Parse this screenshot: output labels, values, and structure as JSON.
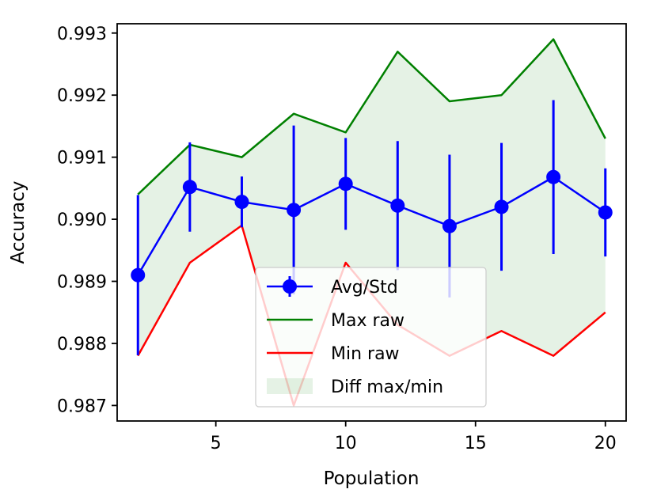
{
  "chart_data": {
    "type": "line",
    "title": "",
    "xlabel": "Population",
    "ylabel": "Accuracy",
    "xlim": [
      1.2,
      20.8
    ],
    "ylim": [
      0.98675,
      0.99315
    ],
    "xticks": [
      5,
      10,
      15,
      20
    ],
    "xtick_labels": [
      "5",
      "10",
      "15",
      "20"
    ],
    "yticks": [
      0.987,
      0.988,
      0.989,
      0.99,
      0.991,
      0.992,
      0.993
    ],
    "ytick_labels": [
      "0.987",
      "0.988",
      "0.989",
      "0.990",
      "0.991",
      "0.992",
      "0.993"
    ],
    "grid": false,
    "legend_position": "lower center",
    "x": [
      2,
      4,
      6,
      8,
      10,
      12,
      14,
      16,
      18,
      20
    ],
    "series": [
      {
        "name": "Avg/Std",
        "kind": "errorbar",
        "color": "#0000ff",
        "values": [
          0.9891,
          0.99052,
          0.99028,
          0.99015,
          0.99057,
          0.99022,
          0.98989,
          0.9902,
          0.99068,
          0.99011
        ],
        "errors": [
          0.00129,
          0.00072,
          0.00041,
          0.00136,
          0.00074,
          0.00104,
          0.00115,
          0.00103,
          0.00124,
          0.00071
        ]
      },
      {
        "name": "Max raw",
        "kind": "line",
        "color": "#008000",
        "values": [
          0.9904,
          0.9912,
          0.991,
          0.9917,
          0.9914,
          0.9927,
          0.9919,
          0.992,
          0.9929,
          0.9913
        ]
      },
      {
        "name": "Min raw",
        "kind": "line",
        "color": "#ff0000",
        "values": [
          0.9878,
          0.9893,
          0.9899,
          0.987,
          0.9893,
          0.9883,
          0.9878,
          0.9882,
          0.9878,
          0.9885
        ]
      },
      {
        "name": "Diff max/min",
        "kind": "fill_between",
        "color": "#008000",
        "opacity": 0.1
      }
    ]
  }
}
